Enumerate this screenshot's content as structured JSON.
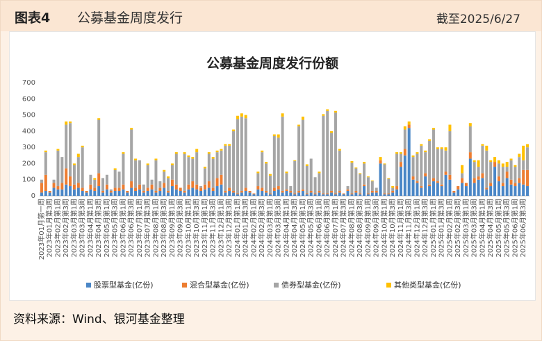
{
  "header": {
    "label": "图表4",
    "title": "公募基金周度发行",
    "date": "截至2025/6/27"
  },
  "source": "资料来源：Wind、银河基金整理",
  "chart_data": {
    "type": "stacked_bar",
    "title": "公募基金周度发行份额",
    "categories": [
      "2023年01月第一周",
      null,
      "2023年01月第3周",
      null,
      "2023年02月第1周",
      null,
      "2023年02月第3周",
      null,
      "2023年03月第1周",
      null,
      "2023年03月第3周",
      null,
      "2023年04月第1周",
      null,
      "2023年04月第3周",
      null,
      "2023年05月第1周",
      null,
      "2023年05月第3周",
      null,
      "2023年06月第1周",
      null,
      "2023年06月第3周",
      null,
      "2023年07月第1周",
      null,
      "2023年07月第3周",
      null,
      "2023年08月第1周",
      null,
      "2023年08月第3周",
      null,
      "2023年09月第1周",
      null,
      "2023年09月第3周",
      null,
      "2023年10月第1周",
      null,
      "2023年10月第3周",
      null,
      "2023年11月第1周",
      null,
      "2023年11月第3周",
      null,
      "2023年12月第1周",
      null,
      "2023年12月第3周",
      null,
      "2024年01月第1周",
      null,
      "2024年01月第3周",
      null,
      "2024年02月第1周",
      null,
      "2024年02月第3周",
      null,
      "2024年03月第1周",
      null,
      "2024年03月第3周",
      null,
      "2024年04月第1周",
      null,
      "2024年04月第3周",
      null,
      "2024年05月第1周",
      null,
      "2024年05月第3周",
      null,
      "2024年06月第1周",
      null,
      "2024年06月第3周",
      null,
      "2024年07月第1周",
      null,
      "2024年07月第3周",
      null,
      "2024年08月第1周",
      null,
      "2024年08月第3周",
      null,
      "2024年09月第1周",
      null,
      "2024年09月第3周",
      null,
      "2024年10月第1周",
      null,
      "2024年10月第3周",
      null,
      "2024年11月第1周",
      null,
      "2024年11月第3周",
      null,
      "2024年12月第1周",
      null,
      "2024年12月第3周",
      null,
      "2025年01月第1周",
      null,
      "2025年01月第3周",
      null,
      "2025年02月第1周",
      null,
      "2025年02月第3周",
      null,
      "2025年03月第1周",
      null,
      "2025年03月第3周",
      null,
      "2025年04月第1周",
      null,
      "2025年04月第3周",
      null,
      "2025年05月第1周",
      null,
      "2025年05月第3周",
      null,
      "2025年06月第1周",
      null,
      "2025年06月第3周",
      null
    ],
    "series": [
      {
        "name": "股票型基金(亿份)",
        "color": "#4a86c6",
        "values": [
          20,
          30,
          20,
          50,
          40,
          40,
          70,
          60,
          40,
          50,
          30,
          20,
          40,
          30,
          60,
          20,
          40,
          20,
          30,
          30,
          40,
          20,
          50,
          30,
          40,
          20,
          30,
          40,
          20,
          30,
          50,
          20,
          60,
          40,
          30,
          20,
          40,
          50,
          40,
          30,
          40,
          50,
          30,
          60,
          70,
          20,
          30,
          20,
          10,
          20,
          30,
          20,
          10,
          40,
          30,
          20,
          10,
          30,
          40,
          20,
          30,
          20,
          10,
          20,
          30,
          10,
          20,
          10,
          20,
          10,
          10,
          20,
          10,
          20,
          10,
          30,
          10,
          20,
          10,
          60,
          10,
          20,
          20,
          200,
          10,
          10,
          20,
          40,
          180,
          250,
          420,
          100,
          80,
          50,
          120,
          60,
          90,
          80,
          60,
          130,
          100,
          20,
          40,
          80,
          60,
          230,
          80,
          100,
          110,
          40,
          60,
          180,
          90,
          60,
          110,
          70,
          60,
          80,
          70,
          60
        ]
      },
      {
        "name": "混合型基金(亿份)",
        "color": "#ed7d31",
        "values": [
          60,
          100,
          10,
          30,
          20,
          40,
          100,
          60,
          30,
          30,
          20,
          10,
          30,
          20,
          80,
          10,
          30,
          10,
          20,
          20,
          30,
          10,
          40,
          20,
          30,
          10,
          20,
          30,
          10,
          20,
          30,
          10,
          40,
          30,
          20,
          10,
          30,
          40,
          30,
          20,
          30,
          40,
          20,
          50,
          60,
          10,
          20,
          10,
          5,
          10,
          20,
          10,
          5,
          20,
          20,
          10,
          5,
          20,
          20,
          10,
          10,
          10,
          5,
          10,
          10,
          5,
          10,
          5,
          10,
          5,
          5,
          10,
          5,
          10,
          5,
          10,
          5,
          10,
          5,
          10,
          5,
          10,
          10,
          20,
          5,
          5,
          10,
          20,
          30,
          40,
          20,
          20,
          10,
          10,
          20,
          10,
          20,
          10,
          10,
          20,
          30,
          10,
          20,
          30,
          20,
          40,
          30,
          20,
          30,
          10,
          20,
          30,
          30,
          20,
          40,
          30,
          20,
          30,
          90,
          100
        ]
      },
      {
        "name": "债券型基金(亿份)",
        "color": "#a5a5a5",
        "values": [
          20,
          140,
          0,
          20,
          220,
          160,
          270,
          330,
          120,
          160,
          250,
          0,
          60,
          50,
          330,
          80,
          60,
          10,
          110,
          100,
          190,
          0,
          320,
          170,
          150,
          40,
          140,
          30,
          190,
          40,
          70,
          80,
          90,
          190,
          0,
          230,
          170,
          140,
          200,
          10,
          100,
          170,
          180,
          160,
          150,
          280,
          260,
          370,
          460,
          460,
          430,
          0,
          0,
          80,
          220,
          170,
          110,
          320,
          300,
          460,
          100,
          30,
          200,
          400,
          430,
          170,
          200,
          100,
          110,
          480,
          510,
          360,
          500,
          250,
          0,
          20,
          190,
          140,
          120,
          130,
          100,
          60,
          20,
          0,
          180,
          90,
          20,
          200,
          50,
          120,
          0,
          120,
          170,
          250,
          130,
          270,
          300,
          200,
          220,
          130,
          270,
          0,
          0,
          30,
          0,
          160,
          100,
          60,
          170,
          230,
          130,
          0,
          80,
          100,
          30,
          120,
          100,
          130,
          60,
          140
        ]
      },
      {
        "name": "其他类型基金(亿份)",
        "color": "#ffc000",
        "values": [
          0,
          10,
          0,
          0,
          10,
          0,
          20,
          10,
          10,
          20,
          10,
          0,
          0,
          10,
          10,
          0,
          0,
          0,
          10,
          0,
          10,
          0,
          10,
          10,
          0,
          0,
          10,
          0,
          10,
          0,
          10,
          10,
          10,
          10,
          0,
          10,
          10,
          10,
          20,
          0,
          10,
          10,
          10,
          10,
          10,
          10,
          10,
          10,
          20,
          20,
          20,
          0,
          0,
          10,
          10,
          10,
          10,
          10,
          20,
          20,
          10,
          0,
          5,
          10,
          20,
          10,
          0,
          0,
          10,
          10,
          10,
          10,
          10,
          10,
          0,
          0,
          10,
          5,
          5,
          10,
          5,
          5,
          0,
          20,
          5,
          5,
          10,
          10,
          10,
          20,
          20,
          10,
          10,
          10,
          10,
          10,
          10,
          10,
          10,
          20,
          40,
          0,
          0,
          50,
          0,
          20,
          10,
          40,
          10,
          30,
          10,
          30,
          20,
          20,
          30,
          10,
          10,
          20,
          90,
          20
        ]
      }
    ],
    "ylim": [
      0,
      700
    ],
    "yticks": [
      0,
      100,
      200,
      300,
      400,
      500,
      600,
      700
    ],
    "grid": false,
    "legend": "bottom"
  }
}
